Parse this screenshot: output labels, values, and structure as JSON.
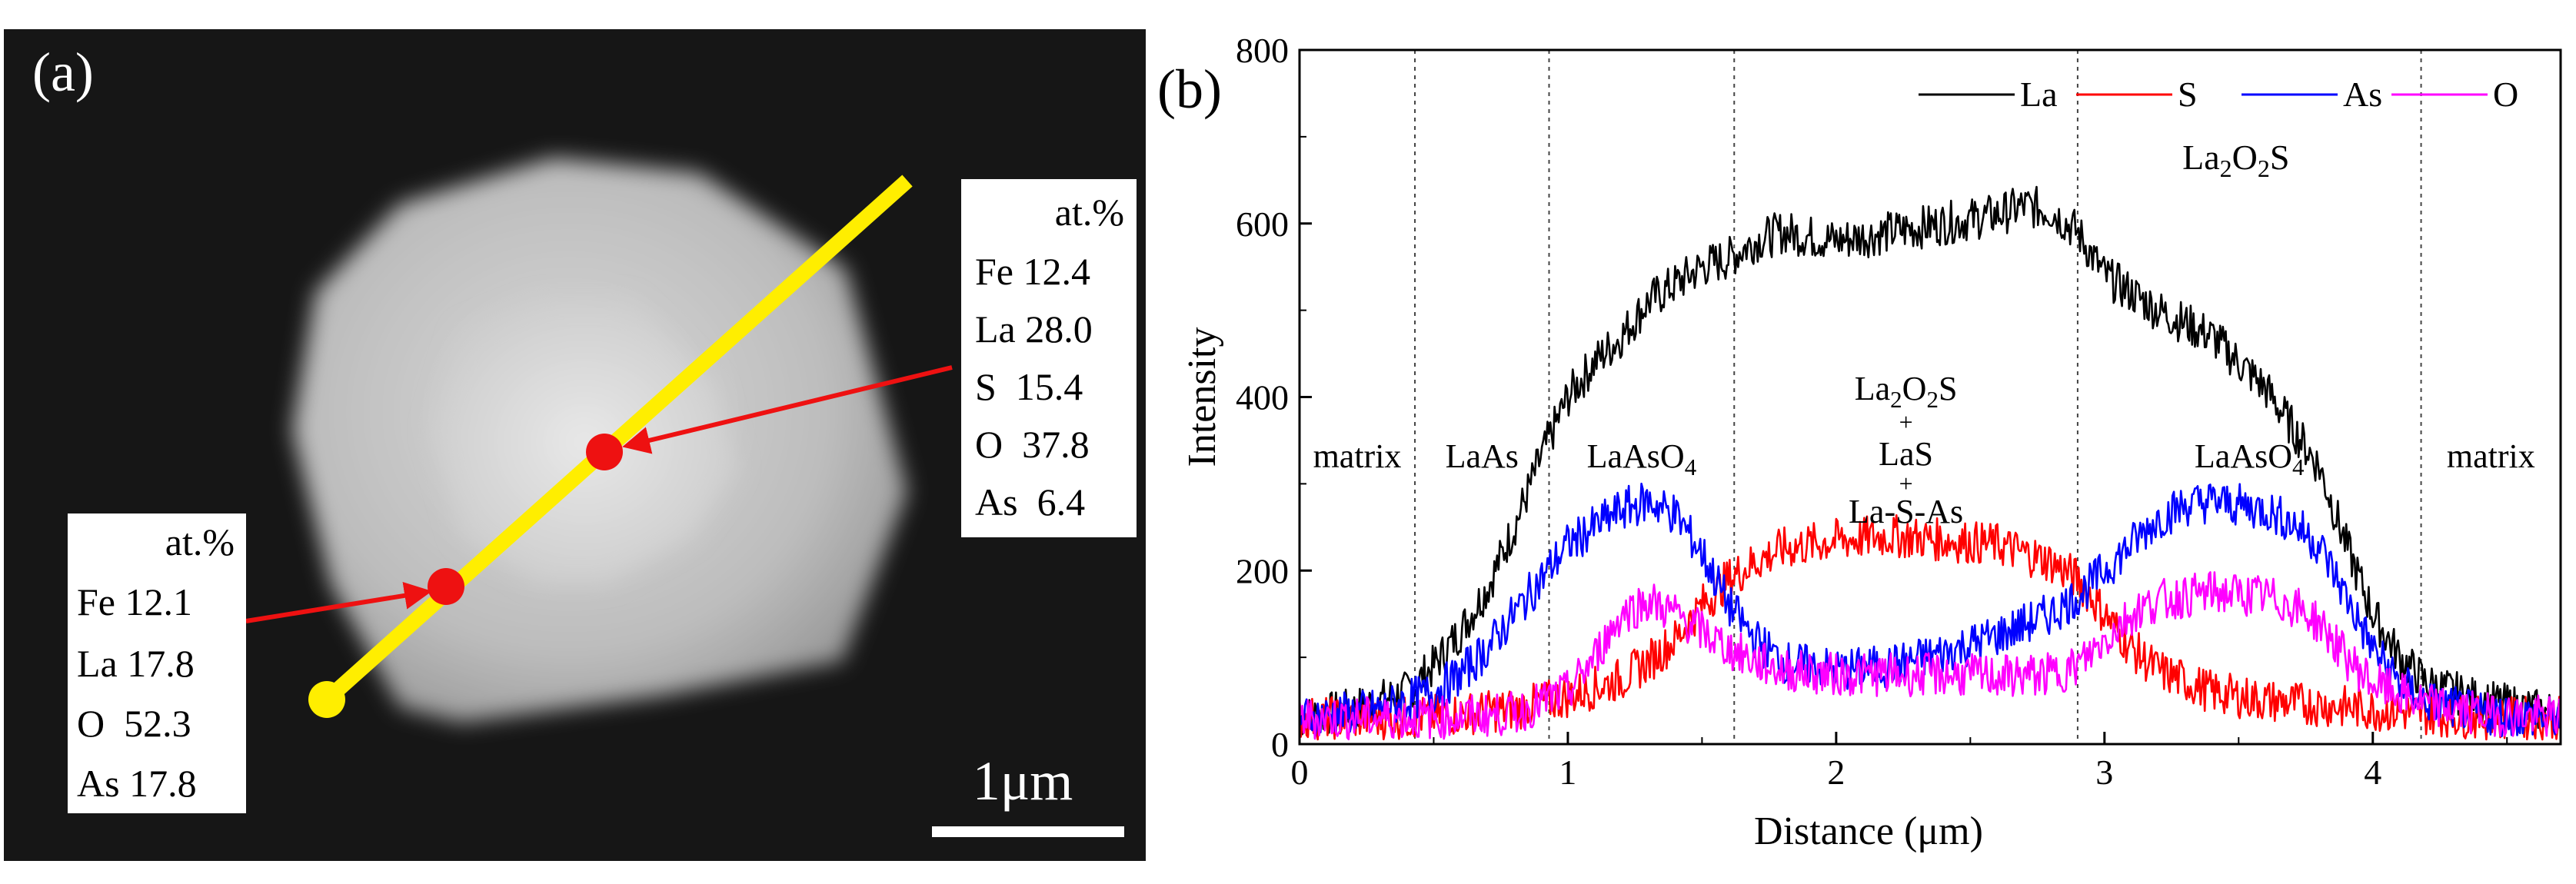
{
  "panel_a": {
    "label": "(a)",
    "scale_bar": "1μm",
    "inner_box": {
      "header": "at.%",
      "rows": [
        "Fe 12.4",
        "La 28.0",
        "S  15.4",
        "O  37.8",
        "As  6.4"
      ]
    },
    "outer_box": {
      "header": "at.%",
      "rows": [
        "Fe 12.1",
        "La 17.8",
        "O  52.3",
        "As 17.8"
      ]
    },
    "colors": {
      "line": "#ffee00",
      "point": "#ee1111",
      "arrow": "#ee1111"
    }
  },
  "panel_b": {
    "label": "(b)"
  },
  "chart_data": {
    "type": "line",
    "xlabel": "Distance (μm)",
    "ylabel": "Intensity",
    "xlim": [
      0,
      4.7
    ],
    "ylim": [
      0,
      800
    ],
    "xticks": [
      0,
      1,
      2,
      3,
      4
    ],
    "yticks": [
      0,
      200,
      400,
      600,
      800
    ],
    "legend_position": "top",
    "boundaries": [
      0.43,
      0.93,
      1.62,
      2.9,
      4.18
    ],
    "region_labels": [
      "matrix",
      "LaAs",
      "LaAsO4",
      "LaAsO4",
      "matrix"
    ],
    "mixed_region": [
      "La2O2S",
      "+",
      "LaS",
      "+",
      "La-S-As"
    ],
    "top_label": "La2O2S",
    "series": [
      {
        "name": "La",
        "color": "#000000",
        "x": [
          0,
          0.2,
          0.4,
          0.5,
          0.6,
          0.7,
          0.8,
          0.9,
          1.0,
          1.1,
          1.2,
          1.3,
          1.4,
          1.5,
          1.6,
          1.7,
          1.8,
          1.9,
          2.0,
          2.2,
          2.4,
          2.6,
          2.7,
          2.8,
          2.9,
          3.0,
          3.2,
          3.4,
          3.6,
          3.8,
          3.9,
          4.0,
          4.1,
          4.2,
          4.4,
          4.7
        ],
        "values": [
          30,
          40,
          60,
          90,
          130,
          180,
          250,
          330,
          400,
          440,
          470,
          510,
          530,
          550,
          560,
          580,
          590,
          585,
          580,
          590,
          600,
          610,
          620,
          615,
          590,
          540,
          500,
          470,
          410,
          320,
          230,
          150,
          100,
          70,
          50,
          35
        ]
      },
      {
        "name": "S",
        "color": "#ff0000",
        "x": [
          0,
          0.4,
          0.8,
          1.0,
          1.1,
          1.2,
          1.3,
          1.4,
          1.5,
          1.6,
          1.7,
          1.8,
          2.0,
          2.2,
          2.4,
          2.6,
          2.8,
          2.9,
          3.0,
          3.1,
          3.2,
          3.4,
          3.6,
          3.8,
          4.0,
          4.2,
          4.4,
          4.7
        ],
        "values": [
          30,
          30,
          40,
          55,
          65,
          75,
          95,
          120,
          160,
          190,
          210,
          225,
          235,
          240,
          235,
          230,
          210,
          190,
          150,
          110,
          85,
          60,
          50,
          45,
          40,
          35,
          30,
          30
        ]
      },
      {
        "name": "As",
        "color": "#0000ff",
        "x": [
          0,
          0.3,
          0.5,
          0.6,
          0.7,
          0.8,
          0.9,
          1.0,
          1.1,
          1.2,
          1.3,
          1.4,
          1.5,
          1.6,
          1.7,
          1.8,
          2.0,
          2.2,
          2.4,
          2.6,
          2.8,
          2.9,
          3.0,
          3.1,
          3.2,
          3.3,
          3.4,
          3.5,
          3.6,
          3.7,
          3.8,
          3.9,
          4.0,
          4.1,
          4.2,
          4.4,
          4.7
        ],
        "values": [
          30,
          40,
          60,
          80,
          110,
          150,
          190,
          230,
          250,
          270,
          280,
          265,
          220,
          160,
          120,
          95,
          85,
          90,
          105,
          125,
          150,
          170,
          200,
          230,
          260,
          275,
          280,
          275,
          270,
          255,
          230,
          170,
          110,
          70,
          50,
          35,
          30
        ]
      },
      {
        "name": "O",
        "color": "#ff00ff",
        "x": [
          0,
          0.5,
          0.8,
          1.0,
          1.1,
          1.2,
          1.3,
          1.4,
          1.5,
          1.6,
          1.7,
          1.8,
          2.0,
          2.2,
          2.4,
          2.6,
          2.8,
          2.9,
          3.0,
          3.1,
          3.2,
          3.4,
          3.6,
          3.7,
          3.8,
          3.9,
          4.0,
          4.2,
          4.4,
          4.7
        ],
        "values": [
          30,
          30,
          35,
          60,
          100,
          150,
          165,
          150,
          130,
          110,
          95,
          85,
          80,
          80,
          80,
          78,
          80,
          90,
          120,
          150,
          165,
          175,
          170,
          160,
          140,
          100,
          70,
          45,
          35,
          30
        ]
      }
    ]
  }
}
